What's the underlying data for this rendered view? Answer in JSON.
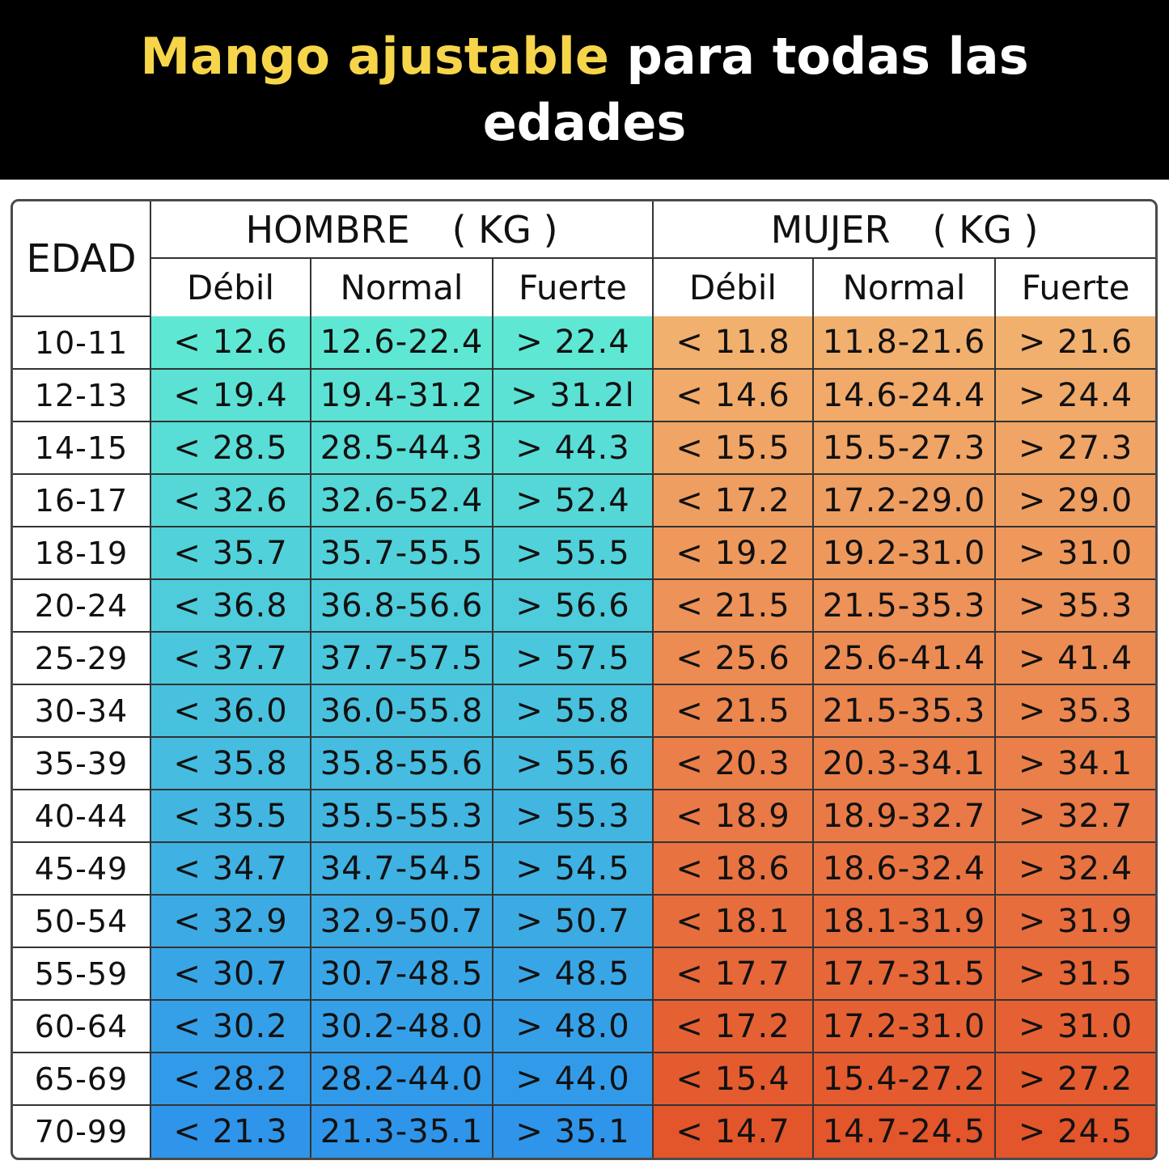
{
  "banner": {
    "title_highlight": "Mango ajustable",
    "title_rest": "para todas las edades",
    "highlight_color": "#f6d54a"
  },
  "table": {
    "age_header": "EDAD",
    "men_header": "HOMBRE",
    "women_header": "MUJER",
    "unit": "( KG )",
    "sub_headers": [
      "Débil",
      "Normal",
      "Fuerte"
    ],
    "men_gradient": [
      "#5ee8d4",
      "#2f95ea"
    ],
    "women_gradient": [
      "#f2b06e",
      "#e3552b"
    ],
    "rows": [
      {
        "age": "10-11",
        "men": [
          "< 12.6",
          "12.6-22.4",
          "> 22.4"
        ],
        "women": [
          "< 11.8",
          "11.8-21.6",
          "> 21.6"
        ]
      },
      {
        "age": "12-13",
        "men": [
          "< 19.4",
          "19.4-31.2",
          "> 31.2l"
        ],
        "women": [
          "< 14.6",
          "14.6-24.4",
          "> 24.4"
        ]
      },
      {
        "age": "14-15",
        "men": [
          "< 28.5",
          "28.5-44.3",
          "> 44.3"
        ],
        "women": [
          "< 15.5",
          "15.5-27.3",
          "> 27.3"
        ]
      },
      {
        "age": "16-17",
        "men": [
          "< 32.6",
          "32.6-52.4",
          "> 52.4"
        ],
        "women": [
          "< 17.2",
          "17.2-29.0",
          "> 29.0"
        ]
      },
      {
        "age": "18-19",
        "men": [
          "< 35.7",
          "35.7-55.5",
          "> 55.5"
        ],
        "women": [
          "< 19.2",
          "19.2-31.0",
          "> 31.0"
        ]
      },
      {
        "age": "20-24",
        "men": [
          "< 36.8",
          "36.8-56.6",
          "> 56.6"
        ],
        "women": [
          "< 21.5",
          "21.5-35.3",
          "> 35.3"
        ]
      },
      {
        "age": "25-29",
        "men": [
          "< 37.7",
          "37.7-57.5",
          "> 57.5"
        ],
        "women": [
          "< 25.6",
          "25.6-41.4",
          "> 41.4"
        ]
      },
      {
        "age": "30-34",
        "men": [
          "< 36.0",
          "36.0-55.8",
          "> 55.8"
        ],
        "women": [
          "< 21.5",
          "21.5-35.3",
          "> 35.3"
        ]
      },
      {
        "age": "35-39",
        "men": [
          "< 35.8",
          "35.8-55.6",
          "> 55.6"
        ],
        "women": [
          "< 20.3",
          "20.3-34.1",
          "> 34.1"
        ]
      },
      {
        "age": "40-44",
        "men": [
          "< 35.5",
          "35.5-55.3",
          "> 55.3"
        ],
        "women": [
          "< 18.9",
          "18.9-32.7",
          "> 32.7"
        ]
      },
      {
        "age": "45-49",
        "men": [
          "< 34.7",
          "34.7-54.5",
          "> 54.5"
        ],
        "women": [
          "< 18.6",
          "18.6-32.4",
          "> 32.4"
        ]
      },
      {
        "age": "50-54",
        "men": [
          "< 32.9",
          "32.9-50.7",
          "> 50.7"
        ],
        "women": [
          "< 18.1",
          "18.1-31.9",
          "> 31.9"
        ]
      },
      {
        "age": "55-59",
        "men": [
          "< 30.7",
          "30.7-48.5",
          "> 48.5"
        ],
        "women": [
          "< 17.7",
          "17.7-31.5",
          "> 31.5"
        ]
      },
      {
        "age": "60-64",
        "men": [
          "< 30.2",
          "30.2-48.0",
          "> 48.0"
        ],
        "women": [
          "< 17.2",
          "17.2-31.0",
          "> 31.0"
        ]
      },
      {
        "age": "65-69",
        "men": [
          "< 28.2",
          "28.2-44.0",
          "> 44.0"
        ],
        "women": [
          "< 15.4",
          "15.4-27.2",
          "> 27.2"
        ]
      },
      {
        "age": "70-99",
        "men": [
          "< 21.3",
          "21.3-35.1",
          "> 35.1"
        ],
        "women": [
          "< 14.7",
          "14.7-24.5",
          "> 24.5"
        ]
      }
    ]
  }
}
